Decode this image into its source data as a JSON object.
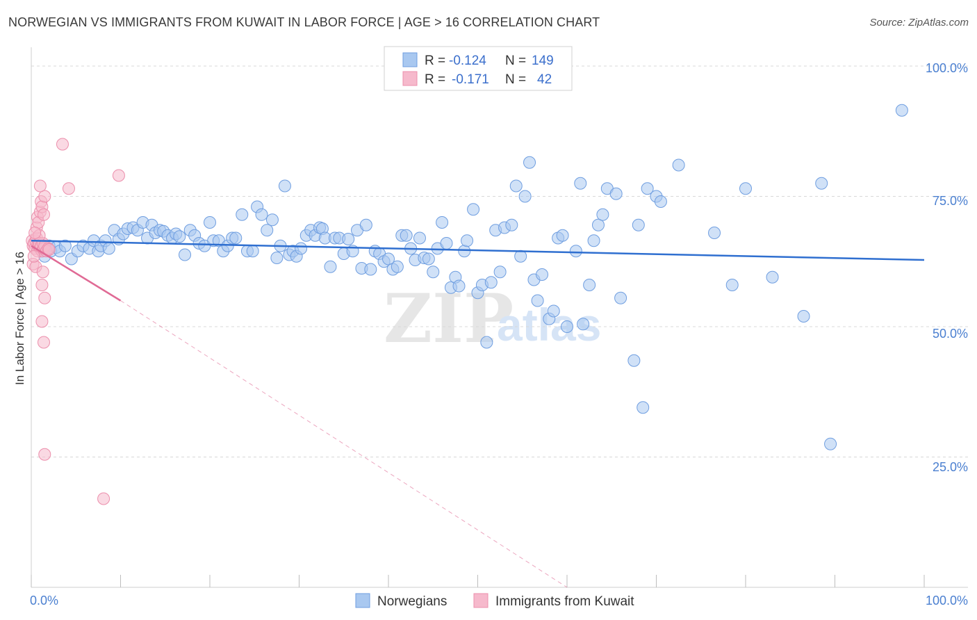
{
  "title": "NORWEGIAN VS IMMIGRANTS FROM KUWAIT IN LABOR FORCE | AGE > 16 CORRELATION CHART",
  "source": "Source: ZipAtlas.com",
  "watermark": {
    "zip": "ZIP",
    "atlas": "atlas"
  },
  "colors": {
    "blue_fill": "#a9c8f0",
    "blue_stroke": "#6f9ee0",
    "blue_line": "#2f6fd0",
    "pink_fill": "#f6b9cc",
    "pink_stroke": "#ec8fac",
    "pink_line": "#e06a95",
    "grid": "#d8d8d8",
    "axis_text": "#4a7fd0"
  },
  "legend": {
    "r_label": "R =",
    "n_label": "N =",
    "rows": [
      {
        "series": "Norwegians",
        "r": "-0.124",
        "n": "149"
      },
      {
        "series": "Immigrants from Kuwait",
        "r": "-0.171",
        "n": "42"
      }
    ]
  },
  "chart_data": {
    "type": "scatter",
    "title": "NORWEGIAN VS IMMIGRANTS FROM KUWAIT IN LABOR FORCE | AGE > 16 CORRELATION CHART",
    "xlabel": "",
    "ylabel": "In Labor Force | Age > 16",
    "xlim": [
      0,
      100
    ],
    "ylim": [
      0,
      102
    ],
    "x_tick_labels": [
      "0.0%",
      "100.0%"
    ],
    "y_ticks": [
      25,
      50,
      75,
      100
    ],
    "y_tick_labels": [
      "25.0%",
      "50.0%",
      "75.0%",
      "100.0%"
    ],
    "grid": true,
    "legend_position": "top-center",
    "series": [
      {
        "name": "Norwegians",
        "trend": {
          "x": [
            0,
            100
          ],
          "y": [
            66.5,
            62.8
          ]
        },
        "points": [
          [
            1.2,
            64.5
          ],
          [
            1.5,
            63.5
          ],
          [
            2.0,
            65.5
          ],
          [
            2.2,
            64.5
          ],
          [
            2.8,
            65.2
          ],
          [
            3.2,
            64.5
          ],
          [
            3.8,
            65.5
          ],
          [
            4.5,
            63.0
          ],
          [
            5.2,
            64.5
          ],
          [
            5.8,
            65.5
          ],
          [
            6.5,
            65.0
          ],
          [
            7.0,
            66.5
          ],
          [
            7.5,
            64.5
          ],
          [
            7.8,
            65.5
          ],
          [
            8.3,
            66.5
          ],
          [
            8.7,
            65.0
          ],
          [
            9.3,
            68.5
          ],
          [
            9.8,
            66.8
          ],
          [
            10.3,
            67.8
          ],
          [
            10.8,
            68.8
          ],
          [
            11.4,
            69.0
          ],
          [
            11.9,
            68.5
          ],
          [
            12.5,
            70.0
          ],
          [
            13.0,
            67.0
          ],
          [
            13.5,
            69.5
          ],
          [
            13.9,
            68.0
          ],
          [
            14.4,
            68.5
          ],
          [
            14.8,
            68.3
          ],
          [
            15.3,
            67.5
          ],
          [
            15.8,
            67.0
          ],
          [
            16.2,
            67.8
          ],
          [
            16.6,
            67.3
          ],
          [
            17.2,
            63.8
          ],
          [
            17.8,
            68.5
          ],
          [
            18.3,
            67.5
          ],
          [
            18.8,
            66.0
          ],
          [
            19.4,
            65.5
          ],
          [
            20.0,
            70.0
          ],
          [
            20.4,
            66.5
          ],
          [
            21.0,
            66.5
          ],
          [
            21.5,
            64.5
          ],
          [
            22.0,
            65.5
          ],
          [
            22.5,
            67.0
          ],
          [
            22.9,
            67.0
          ],
          [
            23.6,
            71.5
          ],
          [
            24.2,
            64.5
          ],
          [
            24.8,
            64.5
          ],
          [
            25.3,
            73.0
          ],
          [
            25.8,
            71.5
          ],
          [
            26.4,
            68.5
          ],
          [
            27.0,
            70.5
          ],
          [
            27.5,
            63.2
          ],
          [
            27.9,
            65.5
          ],
          [
            28.4,
            77.0
          ],
          [
            28.9,
            63.8
          ],
          [
            29.3,
            64.5
          ],
          [
            29.7,
            63.5
          ],
          [
            30.2,
            65.0
          ],
          [
            30.8,
            67.5
          ],
          [
            31.3,
            68.5
          ],
          [
            31.8,
            67.5
          ],
          [
            32.3,
            69.0
          ],
          [
            32.6,
            68.8
          ],
          [
            32.9,
            67.0
          ],
          [
            33.5,
            61.5
          ],
          [
            34.0,
            67.0
          ],
          [
            34.5,
            67.0
          ],
          [
            35.0,
            64.0
          ],
          [
            35.5,
            66.8
          ],
          [
            36.0,
            64.5
          ],
          [
            36.5,
            68.5
          ],
          [
            37.0,
            61.2
          ],
          [
            37.5,
            69.5
          ],
          [
            38.0,
            61.0
          ],
          [
            38.5,
            64.5
          ],
          [
            39.0,
            64.0
          ],
          [
            39.5,
            62.5
          ],
          [
            40.0,
            63.0
          ],
          [
            40.5,
            61.0
          ],
          [
            41.0,
            61.5
          ],
          [
            41.5,
            67.5
          ],
          [
            42.0,
            67.5
          ],
          [
            42.5,
            65.0
          ],
          [
            43.0,
            62.8
          ],
          [
            43.5,
            67.0
          ],
          [
            44.0,
            63.2
          ],
          [
            44.5,
            63.0
          ],
          [
            45.0,
            60.5
          ],
          [
            45.5,
            65.0
          ],
          [
            46.0,
            70.0
          ],
          [
            46.5,
            66.0
          ],
          [
            47.0,
            57.5
          ],
          [
            47.5,
            59.5
          ],
          [
            47.9,
            57.8
          ],
          [
            48.5,
            64.5
          ],
          [
            48.8,
            66.5
          ],
          [
            49.5,
            72.5
          ],
          [
            50.0,
            56.5
          ],
          [
            50.5,
            58.0
          ],
          [
            51.0,
            47.0
          ],
          [
            51.5,
            58.5
          ],
          [
            52.0,
            68.5
          ],
          [
            52.5,
            60.5
          ],
          [
            53.0,
            69.0
          ],
          [
            53.8,
            69.5
          ],
          [
            54.3,
            77.0
          ],
          [
            54.8,
            63.5
          ],
          [
            55.3,
            75.0
          ],
          [
            55.8,
            81.5
          ],
          [
            56.3,
            59.0
          ],
          [
            56.7,
            55.0
          ],
          [
            57.2,
            60.0
          ],
          [
            58.0,
            51.5
          ],
          [
            58.5,
            53.0
          ],
          [
            59.0,
            67.0
          ],
          [
            59.5,
            67.5
          ],
          [
            60.0,
            50.0
          ],
          [
            61.0,
            64.5
          ],
          [
            61.5,
            77.5
          ],
          [
            61.8,
            50.5
          ],
          [
            62.5,
            58.0
          ],
          [
            63.0,
            66.5
          ],
          [
            63.5,
            69.5
          ],
          [
            64.0,
            71.5
          ],
          [
            64.5,
            76.5
          ],
          [
            65.5,
            75.5
          ],
          [
            66.0,
            55.5
          ],
          [
            67.5,
            43.5
          ],
          [
            68.0,
            69.5
          ],
          [
            68.5,
            34.5
          ],
          [
            69.0,
            76.5
          ],
          [
            70.0,
            75.0
          ],
          [
            70.5,
            74.0
          ],
          [
            72.5,
            81.0
          ],
          [
            76.5,
            68.0
          ],
          [
            78.5,
            58.0
          ],
          [
            80.0,
            76.5
          ],
          [
            83.0,
            59.5
          ],
          [
            86.5,
            52.0
          ],
          [
            88.5,
            77.5
          ],
          [
            89.5,
            27.5
          ],
          [
            97.5,
            91.5
          ]
        ]
      },
      {
        "name": "Immigrants from Kuwait",
        "trend": {
          "x": [
            0,
            10
          ],
          "y": [
            65.5,
            55.0
          ]
        },
        "trend_extension": {
          "x": [
            10,
            60
          ],
          "y": [
            55.0,
            0
          ]
        },
        "points": [
          [
            0.1,
            66.5
          ],
          [
            0.2,
            65.5
          ],
          [
            0.3,
            66.0
          ],
          [
            0.4,
            65.0
          ],
          [
            0.5,
            66.5
          ],
          [
            0.6,
            67.0
          ],
          [
            0.7,
            64.5
          ],
          [
            0.8,
            65.5
          ],
          [
            0.9,
            66.0
          ],
          [
            1.0,
            65.0
          ],
          [
            1.1,
            65.5
          ],
          [
            1.2,
            64.5
          ],
          [
            1.3,
            66.0
          ],
          [
            1.4,
            65.0
          ],
          [
            1.5,
            65.5
          ],
          [
            1.7,
            64.5
          ],
          [
            1.9,
            65.0
          ],
          [
            2.0,
            64.8
          ],
          [
            0.2,
            62.0
          ],
          [
            0.5,
            61.5
          ],
          [
            0.6,
            69.0
          ],
          [
            0.7,
            71.0
          ],
          [
            0.8,
            70.0
          ],
          [
            1.0,
            72.0
          ],
          [
            1.1,
            74.0
          ],
          [
            1.2,
            73.0
          ],
          [
            1.5,
            75.0
          ],
          [
            1.4,
            71.5
          ],
          [
            1.0,
            77.0
          ],
          [
            1.2,
            58.0
          ],
          [
            1.3,
            60.5
          ],
          [
            1.5,
            55.5
          ],
          [
            1.2,
            51.0
          ],
          [
            1.4,
            47.0
          ],
          [
            1.5,
            25.5
          ],
          [
            3.5,
            85.0
          ],
          [
            4.2,
            76.5
          ],
          [
            9.8,
            79.0
          ],
          [
            8.1,
            17.0
          ],
          [
            0.3,
            63.5
          ],
          [
            0.9,
            67.5
          ],
          [
            0.4,
            68.0
          ]
        ]
      }
    ]
  },
  "bottom_legend": [
    "Norwegians",
    "Immigrants from Kuwait"
  ]
}
